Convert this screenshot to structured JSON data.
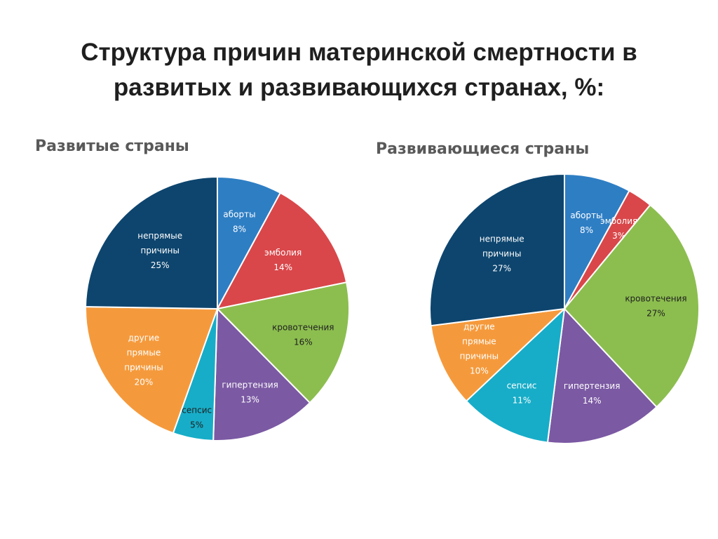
{
  "title_lines": [
    "Структура причин материнской смертности в",
    "развитых и развивающихся странах, %:"
  ],
  "chart_data": [
    {
      "type": "pie",
      "title": "Развитые страны",
      "slices": [
        {
          "label": "аборты",
          "value": 8,
          "display": "8%",
          "color": "#2e7ec4",
          "text_color": "#ffffff"
        },
        {
          "label": "эмболия",
          "value": 14,
          "display": "14%",
          "color": "#d9474a",
          "text_color": "#ffffff"
        },
        {
          "label": "кровотечения",
          "value": 16,
          "display": "16%",
          "color": "#8cbe4f",
          "text_color": "#1f1f1f"
        },
        {
          "label": "гипертензия",
          "value": 13,
          "display": "13%",
          "color": "#7b59a3",
          "text_color": "#ffffff"
        },
        {
          "label": "сепсис",
          "value": 5,
          "display": "5%",
          "color": "#17adc8",
          "text_color": "#1f1f1f"
        },
        {
          "label": "другие прямые причины",
          "value": 20,
          "display": "20%",
          "color": "#f59a3c",
          "text_color": "#ffffff"
        },
        {
          "label": "непрямые причины",
          "value": 25,
          "display": "25%",
          "color": "#0d456e",
          "text_color": "#ffffff"
        }
      ]
    },
    {
      "type": "pie",
      "title": "Развивающиеся страны",
      "slices": [
        {
          "label": "аборты",
          "value": 8,
          "display": "8%",
          "color": "#2e7ec4",
          "text_color": "#ffffff"
        },
        {
          "label": "эмболия",
          "value": 3,
          "display": "3%",
          "color": "#d9474a",
          "text_color": "#ffffff"
        },
        {
          "label": "кровотечения",
          "value": 27,
          "display": "27%",
          "color": "#8cbe4f",
          "text_color": "#1f1f1f"
        },
        {
          "label": "гипертензия",
          "value": 14,
          "display": "14%",
          "color": "#7b59a3",
          "text_color": "#ffffff"
        },
        {
          "label": "сепсис",
          "value": 11,
          "display": "11%",
          "color": "#17adc8",
          "text_color": "#ffffff"
        },
        {
          "label": "другие прямые причины",
          "value": 10,
          "display": "10%",
          "color": "#f59a3c",
          "text_color": "#ffffff"
        },
        {
          "label": "непрямые причины",
          "value": 27,
          "display": "27%",
          "color": "#0d456e",
          "text_color": "#ffffff"
        }
      ]
    }
  ]
}
